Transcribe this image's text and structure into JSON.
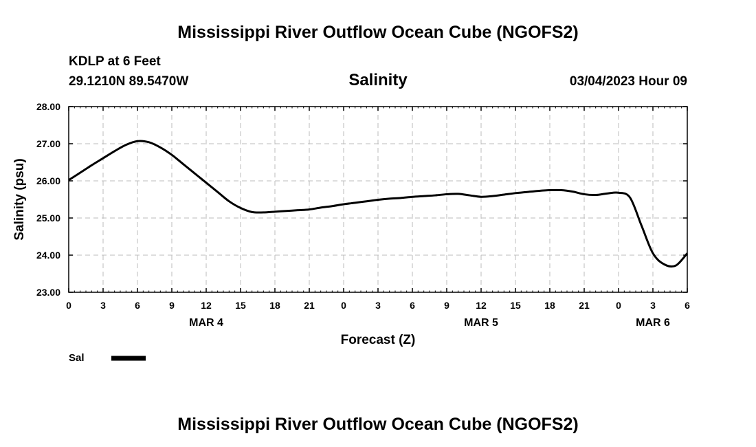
{
  "header": {
    "title": "Mississippi River Outflow Ocean Cube (NGOFS2)",
    "station": "KDLP at 6 Feet",
    "coords": "29.1210N  89.5470W",
    "variable": "Salinity",
    "datetime": "03/04/2023 Hour 09"
  },
  "footer": {
    "title": "Mississippi River Outflow Ocean Cube (NGOFS2)"
  },
  "legend": {
    "label": "Sal"
  },
  "colors": {
    "line": "#000000",
    "grid": "#bbbbbb"
  },
  "chart_data": {
    "type": "line",
    "title": "Salinity",
    "xlabel": "Forecast (Z)",
    "ylabel": "Salinity (psu)",
    "xlim": [
      0,
      54
    ],
    "ylim": [
      23.0,
      28.0
    ],
    "grid": true,
    "legend_position": "bottom-left",
    "x_ticks": [
      0,
      3,
      6,
      9,
      12,
      15,
      18,
      21,
      24,
      27,
      30,
      33,
      36,
      39,
      42,
      45,
      48,
      51,
      54
    ],
    "x_tick_labels": [
      "0",
      "3",
      "6",
      "9",
      "12",
      "15",
      "18",
      "21",
      "0",
      "3",
      "6",
      "9",
      "12",
      "15",
      "18",
      "21",
      "0",
      "3",
      "6"
    ],
    "day_labels": [
      {
        "x": 12,
        "label": "MAR 4"
      },
      {
        "x": 36,
        "label": "MAR 5"
      },
      {
        "x": 51,
        "label": "MAR 6"
      }
    ],
    "y_ticks": [
      23.0,
      24.0,
      25.0,
      26.0,
      27.0,
      28.0
    ],
    "y_tick_labels": [
      "23.00",
      "24.00",
      "25.00",
      "26.00",
      "27.00",
      "28.00"
    ],
    "series": [
      {
        "name": "Sal",
        "x": [
          0,
          1,
          2,
          3,
          4,
          5,
          6,
          7,
          8,
          9,
          10,
          11,
          12,
          13,
          14,
          15,
          16,
          17,
          18,
          19,
          20,
          21,
          22,
          23,
          24,
          25,
          26,
          27,
          28,
          29,
          30,
          31,
          32,
          33,
          34,
          35,
          36,
          37,
          38,
          39,
          40,
          41,
          42,
          43,
          44,
          45,
          46,
          47,
          48,
          49,
          50,
          51,
          52,
          53,
          54
        ],
        "values": [
          26.02,
          26.22,
          26.42,
          26.61,
          26.8,
          26.97,
          27.07,
          27.04,
          26.9,
          26.7,
          26.45,
          26.2,
          25.95,
          25.7,
          25.45,
          25.27,
          25.16,
          25.15,
          25.17,
          25.19,
          25.21,
          25.23,
          25.28,
          25.32,
          25.37,
          25.41,
          25.45,
          25.49,
          25.52,
          25.54,
          25.57,
          25.59,
          25.61,
          25.64,
          25.65,
          25.61,
          25.57,
          25.59,
          25.63,
          25.67,
          25.7,
          25.73,
          25.75,
          25.75,
          25.71,
          25.64,
          25.62,
          25.66,
          25.68,
          25.55,
          24.8,
          24.05,
          23.75,
          23.72,
          24.05
        ]
      }
    ]
  }
}
